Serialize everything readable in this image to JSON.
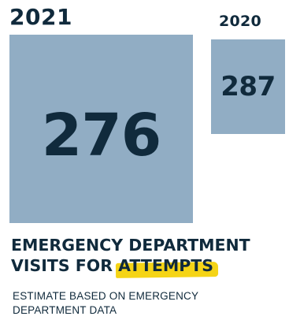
{
  "panels": [
    {
      "year": "2021",
      "value": "276"
    },
    {
      "year": "2020",
      "value": "287"
    }
  ],
  "heading": {
    "line1": "EMERGENCY DEPARTMENT",
    "line2_prefix": "VISITS FOR ",
    "line2_highlight": "ATTEMPTS"
  },
  "note": {
    "line1": "ESTIMATE BASED ON EMERGENCY",
    "line2": "DEPARTMENT DATA"
  },
  "colors": {
    "dark_navy": "#102a3c",
    "box_blue": "#91adc4",
    "highlight_yellow": "#f5d416",
    "background": "#ffffff"
  }
}
